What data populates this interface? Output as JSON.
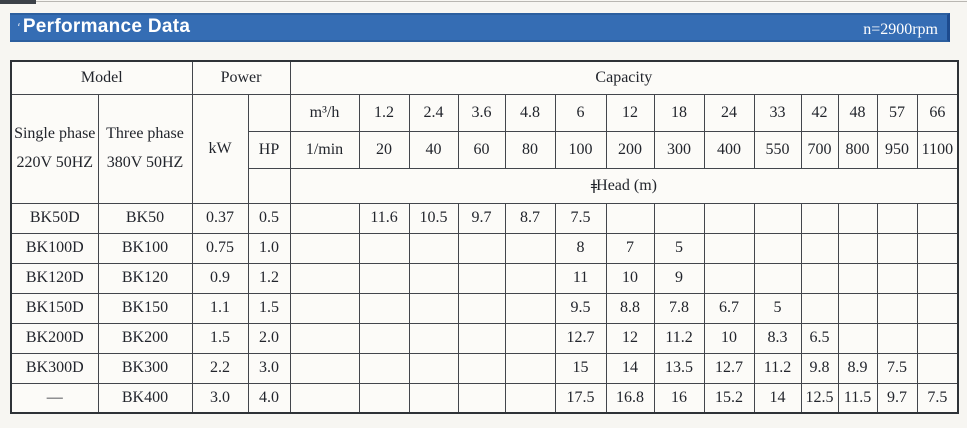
{
  "titlebar": {
    "artifact_mark": "ʻ",
    "title": "Performance Data",
    "speed": "n=2900rpm",
    "bar_color": "#356db4"
  },
  "table": {
    "model_header": "Model",
    "power_header": "Power",
    "capacity_header": "Capacity",
    "single_phase_line1": "Single phase",
    "single_phase_line2": "220V 50HZ",
    "three_phase_line1": "Three phase",
    "three_phase_line2": "380V 50HZ",
    "kw_header": "kW",
    "hp_header": "HP",
    "m3h_label": "m³/h",
    "lmin_label": "1/min",
    "head_artifact": "ǂ",
    "head_label": "Head (m)",
    "m3h_values": [
      "1.2",
      "2.4",
      "3.6",
      "4.8",
      "6",
      "12",
      "18",
      "24",
      "33",
      "42",
      "48",
      "57",
      "66"
    ],
    "lmin_values": [
      "20",
      "40",
      "60",
      "80",
      "100",
      "200",
      "300",
      "400",
      "550",
      "700",
      "800",
      "950",
      "1100"
    ],
    "rows": [
      {
        "single_phase": "BK50D",
        "three_phase": "BK50",
        "kw": "0.37",
        "hp": "0.5",
        "heads": [
          "11.6",
          "10.5",
          "9.7",
          "8.7",
          "7.5",
          "",
          "",
          "",
          "",
          "",
          "",
          "",
          ""
        ]
      },
      {
        "single_phase": "BK100D",
        "three_phase": "BK100",
        "kw": "0.75",
        "hp": "1.0",
        "heads": [
          "",
          "",
          "",
          "",
          "8",
          "7",
          "5",
          "",
          "",
          "",
          "",
          "",
          ""
        ]
      },
      {
        "single_phase": "BK120D",
        "three_phase": "BK120",
        "kw": "0.9",
        "hp": "1.2",
        "heads": [
          "",
          "",
          "",
          "",
          "11",
          "10",
          "9",
          "",
          "",
          "",
          "",
          "",
          ""
        ]
      },
      {
        "single_phase": "BK150D",
        "three_phase": "BK150",
        "kw": "1.1",
        "hp": "1.5",
        "heads": [
          "",
          "",
          "",
          "",
          "9.5",
          "8.8",
          "7.8",
          "6.7",
          "5",
          "",
          "",
          "",
          ""
        ]
      },
      {
        "single_phase": "BK200D",
        "three_phase": "BK200",
        "kw": "1.5",
        "hp": "2.0",
        "heads": [
          "",
          "",
          "",
          "",
          "12.7",
          "12",
          "11.2",
          "10",
          "8.3",
          "6.5",
          "",
          "",
          ""
        ]
      },
      {
        "single_phase": "BK300D",
        "three_phase": "BK300",
        "kw": "2.2",
        "hp": "3.0",
        "heads": [
          "",
          "",
          "",
          "",
          "15",
          "14",
          "13.5",
          "12.7",
          "11.2",
          "9.8",
          "8.9",
          "7.5",
          ""
        ]
      },
      {
        "single_phase": "—",
        "three_phase": "BK400",
        "kw": "3.0",
        "hp": "4.0",
        "heads": [
          "",
          "",
          "",
          "",
          "17.5",
          "16.8",
          "16",
          "15.2",
          "14",
          "12.5",
          "11.5",
          "9.7",
          "7.5"
        ]
      }
    ]
  }
}
